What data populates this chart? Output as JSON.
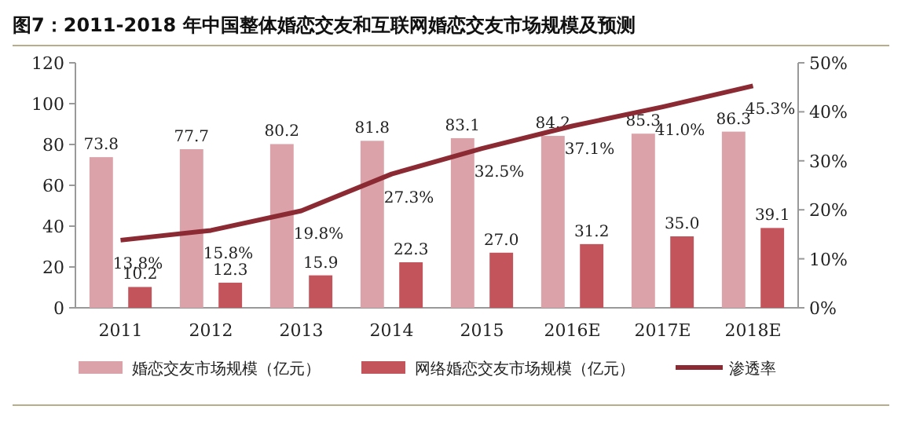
{
  "chart_data": {
    "type": "bar",
    "title": "图7：2011-2018 年中国整体婚恋交友和互联网婚恋交友市场规模及预测",
    "categories": [
      "2011",
      "2012",
      "2013",
      "2014",
      "2015",
      "2016E",
      "2017E",
      "2018E"
    ],
    "series": [
      {
        "name": "婚恋交友市场规模（亿元）",
        "color": "#dba3a9",
        "values": [
          73.8,
          77.7,
          80.2,
          81.8,
          83.1,
          84.2,
          85.3,
          86.3
        ]
      },
      {
        "name": "网络婚恋交友市场规模（亿元）",
        "color": "#c4545b",
        "values": [
          10.2,
          12.3,
          15.9,
          22.3,
          27.0,
          31.2,
          35.0,
          39.1
        ],
        "value_labels": [
          "10.2",
          "12.3",
          "15.9",
          "22.3",
          "27.0",
          "31.2",
          "35.0",
          "39.1"
        ]
      },
      {
        "name": "渗透率",
        "type": "line",
        "axis": "y2",
        "color": "#8c2a33",
        "values": [
          13.8,
          15.8,
          19.8,
          27.3,
          32.5,
          37.1,
          41.0,
          45.3
        ],
        "value_labels": [
          "13.8%",
          "15.8%",
          "19.8%",
          "27.3%",
          "32.5%",
          "37.1%",
          "41.0%",
          "45.3%"
        ]
      }
    ],
    "data_labels": true,
    "ylim": [
      0,
      120
    ],
    "yticks": [
      0,
      20,
      40,
      60,
      80,
      100,
      120
    ],
    "y2lim": [
      0,
      50
    ],
    "y2ticks": [
      {
        "value": 0,
        "label": "0%"
      },
      {
        "value": 10,
        "label": "10%"
      },
      {
        "value": 20,
        "label": "20%"
      },
      {
        "value": 30,
        "label": "30%"
      },
      {
        "value": 40,
        "label": "40%"
      },
      {
        "value": 50,
        "label": "50%"
      }
    ],
    "grid": false,
    "legend": "bottom"
  }
}
